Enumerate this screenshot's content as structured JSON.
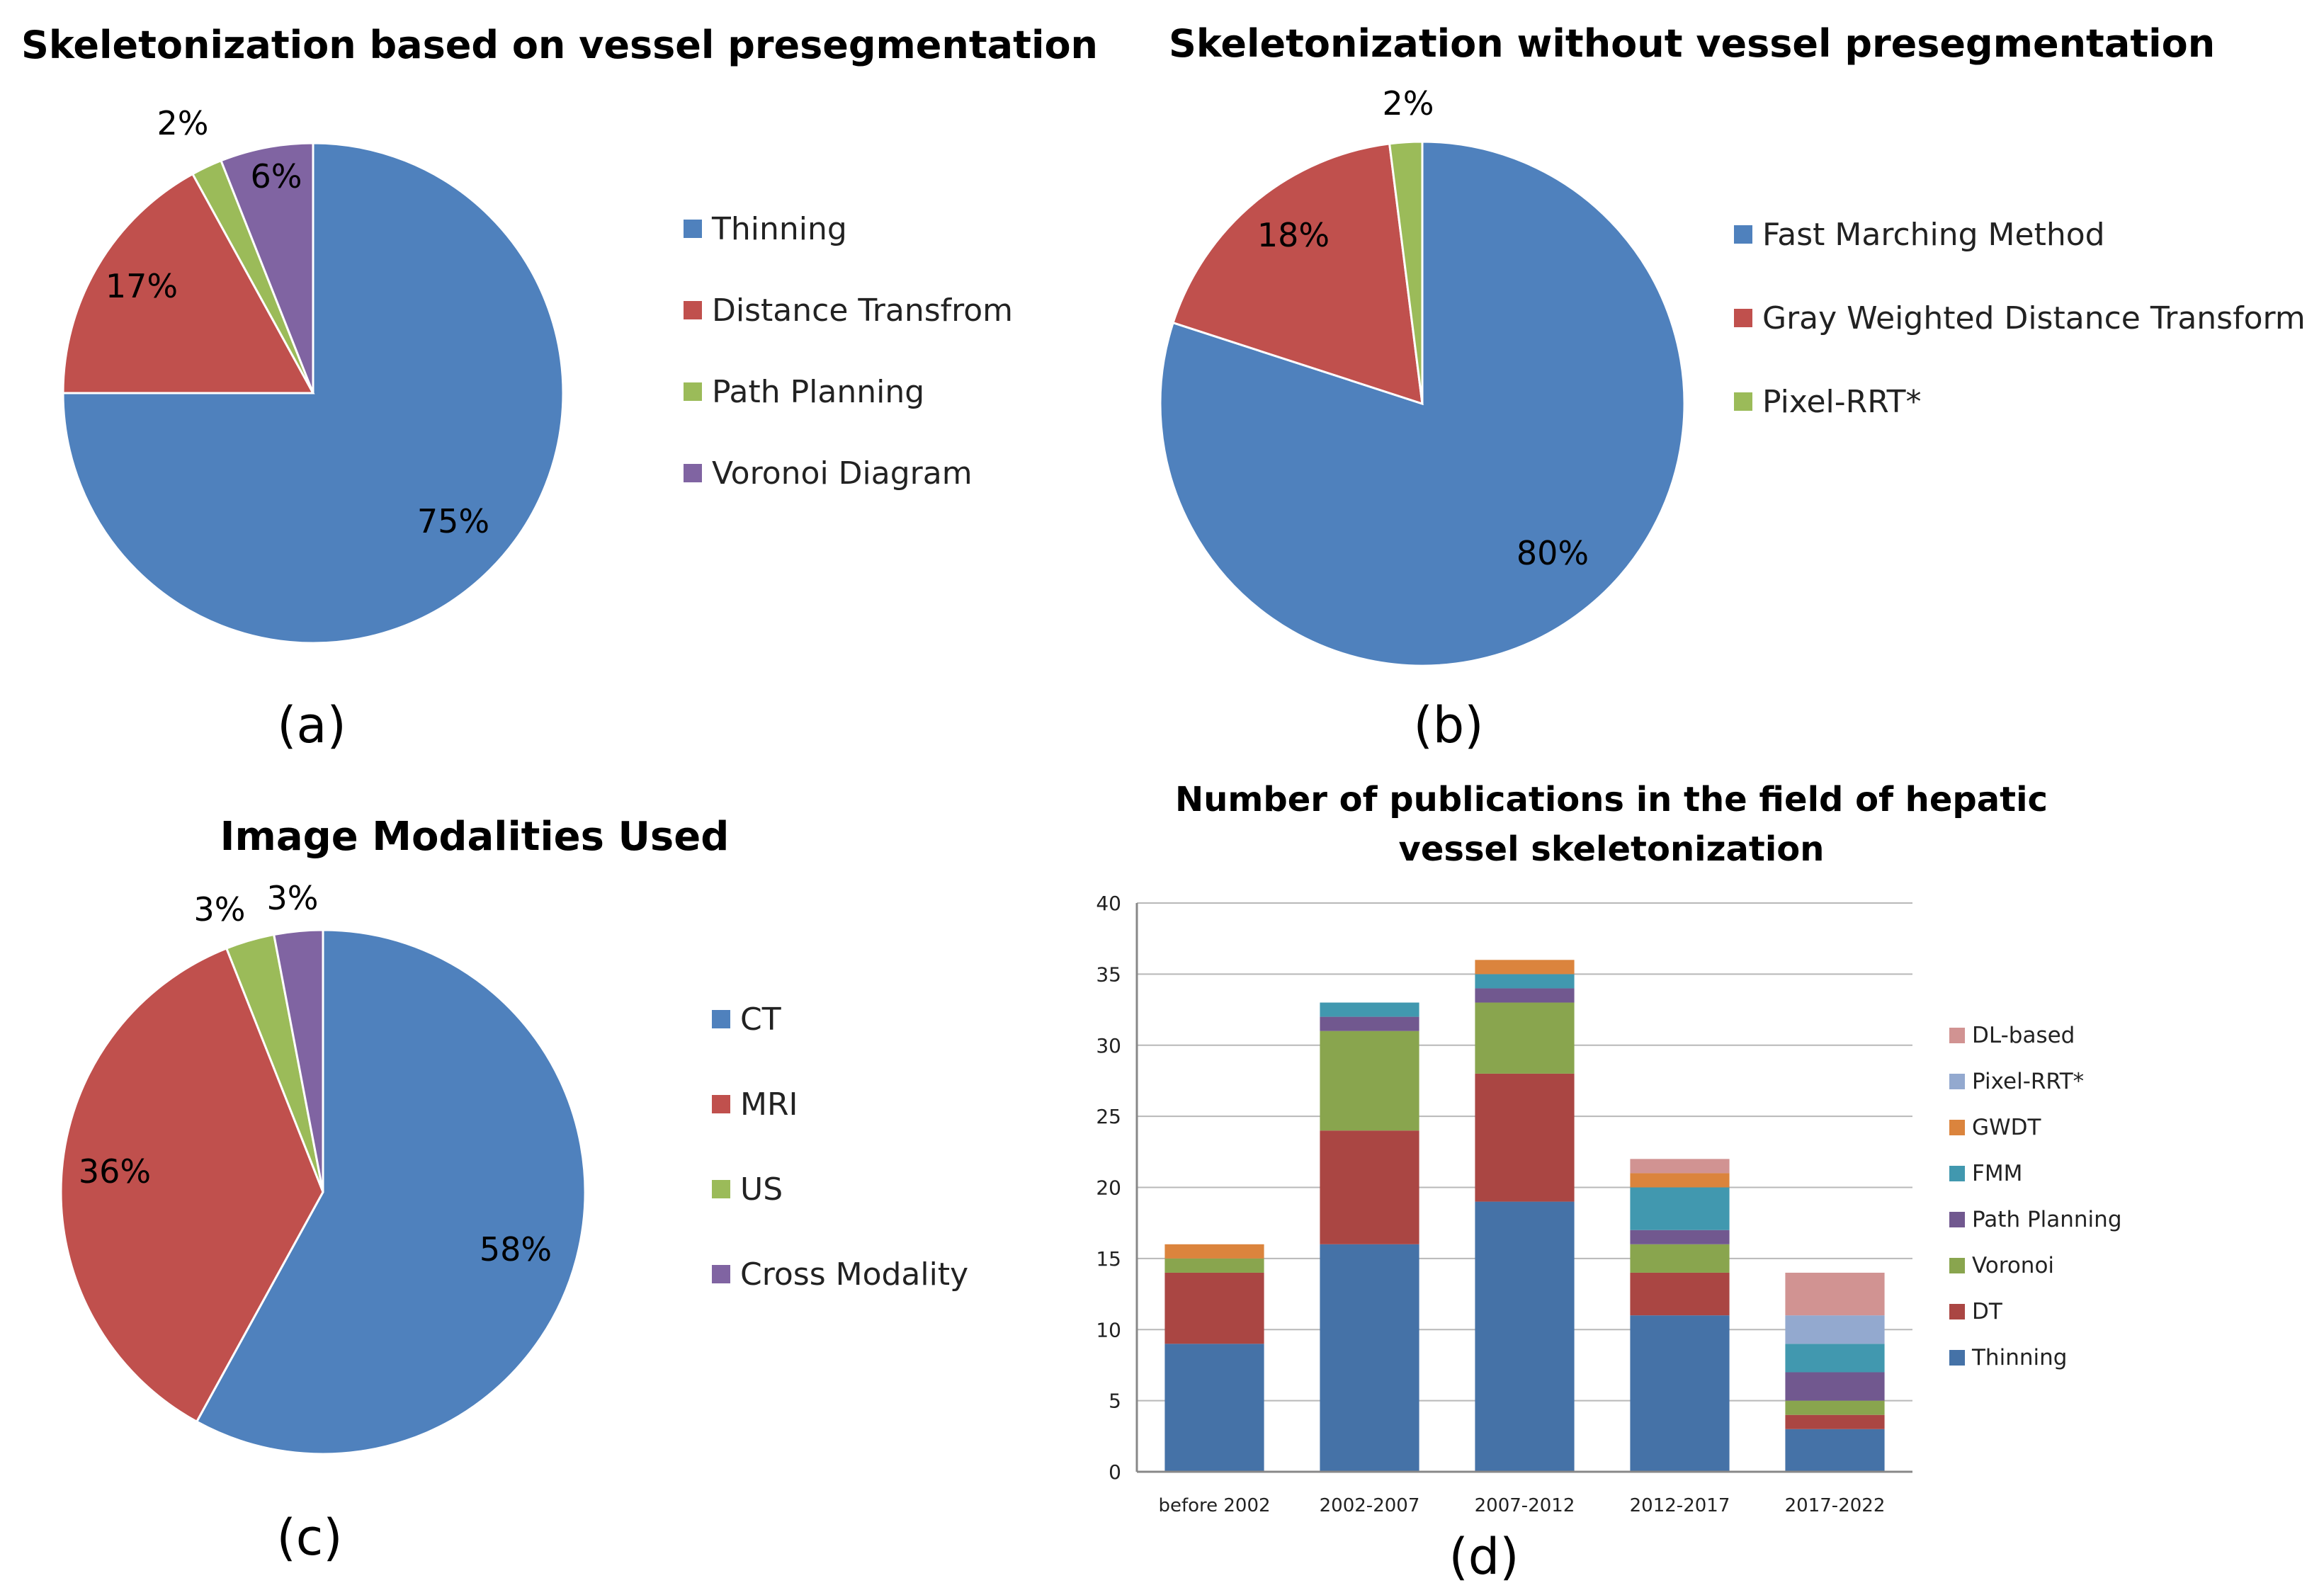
{
  "chart_data": [
    {
      "type": "pie",
      "panel_label": "(a)",
      "title": "Skeletonization based on vessel presegmentation",
      "slices": [
        {
          "name": "Thinning",
          "value": 75,
          "label": "75%",
          "color": "#4f81bd"
        },
        {
          "name": "Distance Transfrom",
          "value": 17,
          "label": "17%",
          "color": "#c0504d"
        },
        {
          "name": "Path Planning",
          "value": 2,
          "label": "2%",
          "color": "#9bbb59"
        },
        {
          "name": "Voronoi Diagram",
          "value": 6,
          "label": "6%",
          "color": "#8064a2"
        }
      ],
      "legend_position": "right"
    },
    {
      "type": "pie",
      "panel_label": "(b)",
      "title": "Skeletonization without vessel presegmentation",
      "slices": [
        {
          "name": "Fast Marching Method",
          "value": 80,
          "label": "80%",
          "color": "#4f81bd"
        },
        {
          "name": "Gray Weighted Distance Transform",
          "value": 18,
          "label": "18%",
          "color": "#c0504d"
        },
        {
          "name": "Pixel-RRT*",
          "value": 2,
          "label": "2%",
          "color": "#9bbb59"
        }
      ],
      "legend_position": "right"
    },
    {
      "type": "pie",
      "panel_label": "(c)",
      "title": "Image Modalities Used",
      "slices": [
        {
          "name": "CT",
          "value": 58,
          "label": "58%",
          "color": "#4f81bd"
        },
        {
          "name": "MRI",
          "value": 36,
          "label": "36%",
          "color": "#c0504d"
        },
        {
          "name": "US",
          "value": 3,
          "label": "3%",
          "color": "#9bbb59"
        },
        {
          "name": "Cross Modality",
          "value": 3,
          "label": "3%",
          "color": "#8064a2"
        }
      ],
      "legend_position": "right"
    },
    {
      "type": "bar",
      "stacked": true,
      "panel_label": "(d)",
      "title_lines": [
        "Number of publications in the field of hepatic",
        "vessel skeletonization"
      ],
      "categories": [
        "before 2002",
        "2002-2007",
        "2007-2012",
        "2012-2017",
        "2017-2022"
      ],
      "ylim": [
        0,
        40
      ],
      "yticks": [
        "0",
        "5",
        "10",
        "15",
        "20",
        "25",
        "30",
        "35",
        "40"
      ],
      "grid": true,
      "legend_position": "right",
      "series": [
        {
          "name": "Thinning",
          "color": "#4572a7",
          "values": [
            9,
            16,
            19,
            11,
            3
          ]
        },
        {
          "name": "DT",
          "color": "#aa4643",
          "values": [
            5,
            8,
            9,
            3,
            1
          ]
        },
        {
          "name": "Voronoi",
          "color": "#89a54e",
          "values": [
            1,
            7,
            5,
            2,
            1
          ]
        },
        {
          "name": "Path Planning",
          "color": "#71588f",
          "values": [
            0,
            1,
            1,
            1,
            2
          ]
        },
        {
          "name": "FMM",
          "color": "#4198af",
          "values": [
            0,
            1,
            1,
            3,
            2
          ]
        },
        {
          "name": "GWDT",
          "color": "#db843d",
          "values": [
            1,
            0,
            1,
            1,
            0
          ]
        },
        {
          "name": "Pixel-RRT*",
          "color": "#93a9cf",
          "values": [
            0,
            0,
            0,
            0,
            2
          ]
        },
        {
          "name": "DL-based",
          "color": "#d19392",
          "values": [
            0,
            0,
            0,
            1,
            3
          ]
        }
      ]
    }
  ]
}
